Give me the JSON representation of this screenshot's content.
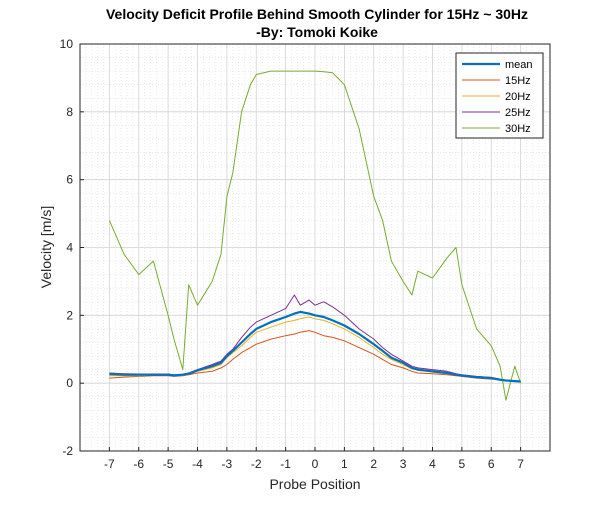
{
  "chart_data": {
    "type": "line",
    "title": "Velocity Deficit Profile Behind Smooth Cylinder for 15Hz ~ 30Hz",
    "subtitle": "-By: Tomoki Koike",
    "xlabel": "Probe Position",
    "ylabel": "Velocity [m/s]",
    "xlim": [
      -8,
      8
    ],
    "ylim": [
      -2,
      10
    ],
    "xticks": [
      -7,
      -6,
      -5,
      -4,
      -3,
      -2,
      -1,
      0,
      1,
      2,
      3,
      4,
      5,
      6,
      7
    ],
    "yticks": [
      -2,
      0,
      2,
      4,
      6,
      8,
      10
    ],
    "grid": true,
    "minor_grid": true,
    "legend_position": "top-right",
    "x": [
      -7.0,
      -6.5,
      -6.0,
      -5.5,
      -5.0,
      -4.8,
      -4.5,
      -4.3,
      -4.0,
      -3.5,
      -3.2,
      -3.0,
      -2.8,
      -2.5,
      -2.2,
      -2.0,
      -1.5,
      -1.0,
      -0.7,
      -0.5,
      -0.2,
      0.0,
      0.3,
      0.6,
      1.0,
      1.5,
      2.0,
      2.3,
      2.6,
      3.0,
      3.3,
      3.5,
      4.0,
      4.5,
      4.8,
      5.0,
      5.5,
      6.0,
      6.3,
      6.5,
      6.8,
      7.0
    ],
    "series": [
      {
        "name": "mean",
        "color": "#0072BD",
        "width": 2.2,
        "values": [
          0.27,
          0.25,
          0.25,
          0.25,
          0.25,
          0.23,
          0.25,
          0.28,
          0.38,
          0.5,
          0.6,
          0.8,
          0.95,
          1.2,
          1.45,
          1.6,
          1.8,
          1.95,
          2.05,
          2.1,
          2.05,
          2.0,
          1.95,
          1.85,
          1.7,
          1.45,
          1.15,
          0.95,
          0.75,
          0.6,
          0.45,
          0.4,
          0.35,
          0.3,
          0.25,
          0.22,
          0.18,
          0.15,
          0.1,
          0.08,
          0.06,
          0.05
        ]
      },
      {
        "name": "15Hz",
        "color": "#D95319",
        "width": 1,
        "values": [
          0.15,
          0.18,
          0.2,
          0.22,
          0.22,
          0.2,
          0.22,
          0.25,
          0.3,
          0.35,
          0.45,
          0.55,
          0.7,
          0.9,
          1.05,
          1.15,
          1.3,
          1.4,
          1.45,
          1.5,
          1.55,
          1.5,
          1.4,
          1.35,
          1.25,
          1.05,
          0.85,
          0.7,
          0.55,
          0.45,
          0.35,
          0.3,
          0.28,
          0.25,
          0.22,
          0.2,
          0.15,
          0.12,
          0.1,
          0.08,
          0.05,
          0.04
        ]
      },
      {
        "name": "20Hz",
        "color": "#EDB120",
        "width": 1,
        "values": [
          0.22,
          0.22,
          0.22,
          0.25,
          0.25,
          0.22,
          0.23,
          0.27,
          0.35,
          0.45,
          0.55,
          0.75,
          0.9,
          1.1,
          1.35,
          1.5,
          1.65,
          1.8,
          1.85,
          1.9,
          1.95,
          1.9,
          1.85,
          1.75,
          1.6,
          1.35,
          1.05,
          0.85,
          0.7,
          0.55,
          0.42,
          0.38,
          0.32,
          0.28,
          0.24,
          0.2,
          0.17,
          0.13,
          0.1,
          0.07,
          0.05,
          0.04
        ]
      },
      {
        "name": "25Hz",
        "color": "#7E2F8E",
        "width": 1,
        "values": [
          0.3,
          0.28,
          0.27,
          0.27,
          0.27,
          0.24,
          0.26,
          0.3,
          0.4,
          0.55,
          0.65,
          0.85,
          1.0,
          1.35,
          1.65,
          1.8,
          2.0,
          2.2,
          2.6,
          2.3,
          2.45,
          2.3,
          2.4,
          2.25,
          2.0,
          1.6,
          1.3,
          1.05,
          0.85,
          0.65,
          0.5,
          0.45,
          0.4,
          0.35,
          0.28,
          0.25,
          0.2,
          0.17,
          0.12,
          0.09,
          0.07,
          0.05
        ]
      },
      {
        "name": "30Hz",
        "color": "#77AC30",
        "width": 1,
        "values": [
          4.8,
          3.8,
          3.2,
          3.6,
          2.0,
          1.3,
          0.4,
          2.9,
          2.3,
          3.0,
          3.8,
          5.5,
          6.2,
          8.0,
          8.8,
          9.1,
          9.2,
          9.2,
          9.2,
          9.2,
          9.2,
          9.2,
          9.18,
          9.15,
          8.8,
          7.5,
          5.5,
          4.8,
          3.6,
          3.0,
          2.6,
          3.3,
          3.1,
          3.7,
          4.0,
          2.9,
          1.6,
          1.1,
          0.5,
          -0.5,
          0.5,
          0.0
        ]
      }
    ]
  }
}
